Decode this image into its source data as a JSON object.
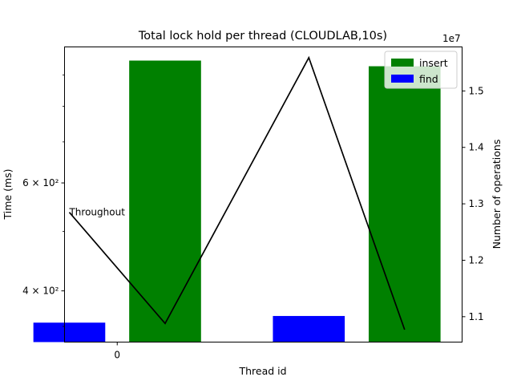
{
  "chart_data": {
    "type": "bar",
    "title": "Total lock hold per thread (CLOUDLAB,10s)",
    "xlabel": "Thread id",
    "ylabel": "Time (ms)",
    "y2label": "Number of operations",
    "y2_offset_label": "1e7",
    "y_scale": "log",
    "ylim": [
      330,
      1000
    ],
    "y2lim": [
      10350000,
      15580000
    ],
    "xlim": [
      -0.55,
      3.6
    ],
    "x_ticks": [
      {
        "value": 0,
        "label": "0"
      }
    ],
    "y_ticks": [
      {
        "value": 400,
        "label": "4 × 10²"
      },
      {
        "value": 600,
        "label": "6 × 10²"
      }
    ],
    "y2_ticks": [
      {
        "value": 10800000,
        "label": "1.1"
      },
      {
        "value": 11800000,
        "label": "1.2"
      },
      {
        "value": 12800000,
        "label": "1.3"
      },
      {
        "value": 13800000,
        "label": "1.4"
      },
      {
        "value": 14800000,
        "label": "1.5"
      }
    ],
    "series": [
      {
        "name": "insert",
        "color": "#008000",
        "bars": [
          {
            "x": 0.5,
            "value": 950
          },
          {
            "x": 3.0,
            "value": 930
          }
        ]
      },
      {
        "name": "find",
        "color": "#0000ff",
        "bars": [
          {
            "x": -0.5,
            "value": 355
          },
          {
            "x": 2.0,
            "value": 364
          }
        ]
      }
    ],
    "bar_width": 0.75,
    "throughput_line": {
      "color": "#000000",
      "axis": "right",
      "points": [
        {
          "x": -0.5,
          "y": 12650000
        },
        {
          "x": 0.5,
          "y": 10680000
        },
        {
          "x": 2.0,
          "y": 15390000
        },
        {
          "x": 3.0,
          "y": 10570000
        }
      ]
    },
    "annotations": [
      {
        "text": "Throughout",
        "x": -0.5,
        "y2": 12650000
      }
    ],
    "legend": {
      "placement": "top-right",
      "entries": [
        "insert",
        "find"
      ]
    },
    "grid": false
  }
}
